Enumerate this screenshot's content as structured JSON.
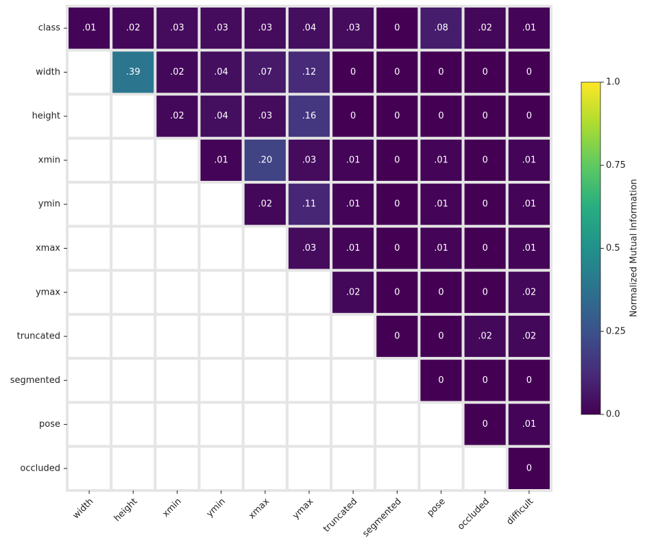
{
  "chart_data": {
    "type": "heatmap",
    "x_categories": [
      "width",
      "height",
      "xmin",
      "ymin",
      "xmax",
      "ymax",
      "truncated",
      "segmented",
      "pose",
      "occluded",
      "difficult"
    ],
    "y_categories": [
      "class",
      "width",
      "height",
      "xmin",
      "ymin",
      "xmax",
      "ymax",
      "truncated",
      "segmented",
      "pose",
      "occluded"
    ],
    "values": [
      [
        0.01,
        0.02,
        0.03,
        0.03,
        0.03,
        0.04,
        0.03,
        0,
        0.08,
        0.02,
        0.01
      ],
      [
        null,
        0.39,
        0.02,
        0.04,
        0.07,
        0.12,
        0,
        0,
        0,
        0,
        0
      ],
      [
        null,
        null,
        0.02,
        0.04,
        0.03,
        0.16,
        0,
        0,
        0,
        0,
        0
      ],
      [
        null,
        null,
        null,
        0.01,
        0.2,
        0.03,
        0.01,
        0,
        0.01,
        0,
        0.01
      ],
      [
        null,
        null,
        null,
        null,
        0.02,
        0.11,
        0.01,
        0,
        0.01,
        0,
        0.01
      ],
      [
        null,
        null,
        null,
        null,
        null,
        0.03,
        0.01,
        0,
        0.01,
        0,
        0.01
      ],
      [
        null,
        null,
        null,
        null,
        null,
        null,
        0.02,
        0,
        0,
        0,
        0.02
      ],
      [
        null,
        null,
        null,
        null,
        null,
        null,
        null,
        0,
        0,
        0.02,
        0.02
      ],
      [
        null,
        null,
        null,
        null,
        null,
        null,
        null,
        null,
        0,
        0,
        0
      ],
      [
        null,
        null,
        null,
        null,
        null,
        null,
        null,
        null,
        null,
        0,
        0.01
      ],
      [
        null,
        null,
        null,
        null,
        null,
        null,
        null,
        null,
        null,
        null,
        0
      ]
    ],
    "value_labels": [
      [
        ".01",
        ".02",
        ".03",
        ".03",
        ".03",
        ".04",
        ".03",
        "0",
        ".08",
        ".02",
        ".01"
      ],
      [
        null,
        ".39",
        ".02",
        ".04",
        ".07",
        ".12",
        "0",
        "0",
        "0",
        "0",
        "0"
      ],
      [
        null,
        null,
        ".02",
        ".04",
        ".03",
        ".16",
        "0",
        "0",
        "0",
        "0",
        "0"
      ],
      [
        null,
        null,
        null,
        ".01",
        ".20",
        ".03",
        ".01",
        "0",
        ".01",
        "0",
        ".01"
      ],
      [
        null,
        null,
        null,
        null,
        ".02",
        ".11",
        ".01",
        "0",
        ".01",
        "0",
        ".01"
      ],
      [
        null,
        null,
        null,
        null,
        null,
        ".03",
        ".01",
        "0",
        ".01",
        "0",
        ".01"
      ],
      [
        null,
        null,
        null,
        null,
        null,
        null,
        ".02",
        "0",
        "0",
        "0",
        ".02"
      ],
      [
        null,
        null,
        null,
        null,
        null,
        null,
        null,
        "0",
        "0",
        ".02",
        ".02"
      ],
      [
        null,
        null,
        null,
        null,
        null,
        null,
        null,
        null,
        "0",
        "0",
        "0"
      ],
      [
        null,
        null,
        null,
        null,
        null,
        null,
        null,
        null,
        null,
        "0",
        ".01"
      ],
      [
        null,
        null,
        null,
        null,
        null,
        null,
        null,
        null,
        null,
        null,
        "0"
      ]
    ],
    "colormap": "viridis",
    "clim": [
      0,
      1
    ],
    "cticks": [
      {
        "value": 0,
        "label": "0.0"
      },
      0.25,
      0.5,
      0.75,
      {
        "value": 1,
        "label": "1.0"
      }
    ],
    "colorbar_label": "Normalized Mutual Information"
  }
}
